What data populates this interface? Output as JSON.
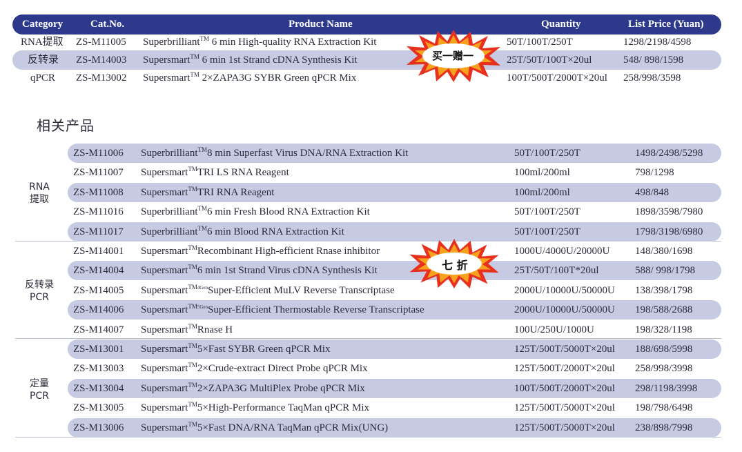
{
  "header": {
    "category": "Category",
    "cat_no": "Cat.No.",
    "product_name": "Product Name",
    "quantity": "Quantity",
    "list_price": "List Price (Yuan)"
  },
  "top_rows": [
    {
      "category": "RNA提取",
      "cat_no": "ZS-M11005",
      "brand": "Superbrilliant",
      "tm": "TM",
      "name": " 6 min High-quality RNA Extraction Kit",
      "quantity": "50T/100T/250T",
      "price": "1298/2198/4598"
    },
    {
      "category": "反转录",
      "cat_no": "ZS-M14003",
      "brand": "Supersmart",
      "tm": "TM",
      "name": " 6 min 1st Strand cDNA Synthesis Kit",
      "quantity": "25T/50T/100T×20ul",
      "price": "548/ 898/1598"
    },
    {
      "category": "qPCR",
      "cat_no": "ZS-M13002",
      "brand": "Supersmart",
      "tm": "TM",
      "name": " 2×ZAPA3G SYBR Green qPCR Mix",
      "quantity": "100T/500T/2000T×20ul",
      "price": "258/998/3598"
    }
  ],
  "promo_top": "买一赠一",
  "related_title": "相关产品",
  "promo_discount": "七 折",
  "groups": [
    {
      "label_line1": "RNA",
      "label_line2": "提取"
    },
    {
      "label_line1": "反转录",
      "label_line2": "PCR"
    },
    {
      "label_line1": "定量",
      "label_line2": "PCR"
    }
  ],
  "related_rows": [
    {
      "cat_no": "ZS-M11006",
      "brand": "Superbrilliant",
      "tm": "TM",
      "name": "8 min Superfast Virus DNA/RNA Extraction Kit",
      "quantity": "50T/100T/250T",
      "price": "1498/2498/5298"
    },
    {
      "cat_no": "ZS-M11007",
      "brand": "Supersmart",
      "tm": "TM",
      "name": "TRI LS RNA Reagent",
      "quantity": "100ml/200ml",
      "price": "798/1298"
    },
    {
      "cat_no": "ZS-M11008",
      "brand": "Supersmart",
      "tm": "TM",
      "name": "TRI RNA Reagent",
      "quantity": "100ml/200ml",
      "price": "498/848"
    },
    {
      "cat_no": "ZS-M11016",
      "brand": "Superbrilliant",
      "tm": "TM",
      "name": "6 min Fresh Blood RNA Extraction Kit",
      "quantity": "50T/100T/250T",
      "price": "1898/3598/7980"
    },
    {
      "cat_no": "ZS-M11017",
      "brand": "Superbrilliant",
      "tm": "TM",
      "name": "6 min Blood RNA Extraction Kit",
      "quantity": "50T/100T/250T",
      "price": "1798/3198/6980"
    },
    {
      "cat_no": "ZS-M14001",
      "brand": "Supersmart",
      "tm": "TM",
      "name": "Recombinant High-efficient Rnase inhibitor",
      "quantity": "1000U/4000U/20000U",
      "price": "148/380/1698"
    },
    {
      "cat_no": "ZS-M14004",
      "brand": "Supersmart",
      "tm": "TM",
      "name": "6 min 1st Strand Virus cDNA Synthesis Kit",
      "quantity": "25T/50T/100T*20ul",
      "price": "588/ 998/1798"
    },
    {
      "cat_no": "ZS-M14005",
      "brand": "Supersmart",
      "tm": "TM4Gen",
      "name": "Super-Efficient MuLV Reverse Transcriptase",
      "quantity": "2000U/10000U/50000U",
      "price": "138/398/1798"
    },
    {
      "cat_no": "ZS-M14006",
      "brand": "Supersmart",
      "tm": "TM5Gen",
      "name": "Super-Efficient Thermostable Reverse Transcriptase",
      "quantity": "2000U/10000U/50000U",
      "price": "198/588/2688"
    },
    {
      "cat_no": "ZS-M14007",
      "brand": "Supersmart",
      "tm": "TM",
      "name": "Rnase H",
      "quantity": "100U/250U/1000U",
      "price": "198/328/1198"
    },
    {
      "cat_no": "ZS-M13001",
      "brand": "Supersmart",
      "tm": "TM",
      "name": "5×Fast SYBR Green qPCR Mix",
      "quantity": "125T/500T/5000T×20ul",
      "price": "188/698/5998"
    },
    {
      "cat_no": "ZS-M13003",
      "brand": "Supersmart",
      "tm": "TM",
      "name": "2×Crude-extract Direct Probe qPCR Mix",
      "quantity": "125T/500T/2000T×20ul",
      "price": "258/998/3998"
    },
    {
      "cat_no": "ZS-M13004",
      "brand": "Supersmart",
      "tm": "TM",
      "name": "2×ZAPA3G MultiPlex Probe qPCR Mix",
      "quantity": "100T/500T/2000T×20ul",
      "price": "298/1198/3998"
    },
    {
      "cat_no": "ZS-M13005",
      "brand": "Supersmart",
      "tm": "TM",
      "name": "5×High-Performance TaqMan qPCR Mix",
      "quantity": "125T/500T/5000T×20ul",
      "price": "198/798/6498"
    },
    {
      "cat_no": "ZS-M13006",
      "brand": "Supersmart",
      "tm": "TM",
      "name": "5×Fast DNA/RNA TaqMan qPCR Mix(UNG)",
      "quantity": "125T/500T/5000T×20ul",
      "price": "238/898/7998"
    }
  ],
  "colors": {
    "header_bg": "#2d3a8c",
    "row_shade": "#c6cbe3",
    "burst_outer": "#e8301e",
    "burst_mid": "#f6a21c",
    "burst_inner": "#fbe04a"
  }
}
